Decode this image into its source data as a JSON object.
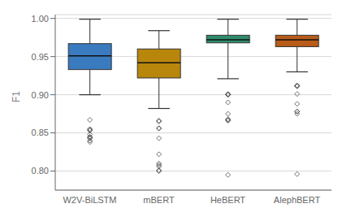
{
  "chart_data": {
    "type": "box",
    "categories": [
      "W2V-BiLSTM",
      "mBERT",
      "HeBERT",
      "AlephBERT"
    ],
    "colors": [
      "#3a7abf",
      "#b8860b",
      "#2e8b6e",
      "#b85c1a"
    ],
    "ylabel": "F1",
    "ylim": [
      0.775,
      1.005
    ],
    "yticks": [
      {
        "value": 0.8,
        "label": "0.80"
      },
      {
        "value": 0.85,
        "label": "0.85"
      },
      {
        "value": 0.9,
        "label": "0.90"
      },
      {
        "value": 0.95,
        "label": "0.95"
      },
      {
        "value": 1.0,
        "label": "1.00"
      }
    ],
    "grid": true,
    "boxes": [
      {
        "whislo": 0.9,
        "q1": 0.933,
        "med": 0.951,
        "q3": 0.967,
        "whishi": 0.999,
        "fliers": [
          0.867,
          0.855,
          0.854,
          0.853,
          0.848,
          0.845,
          0.844,
          0.843,
          0.84,
          0.838
        ]
      },
      {
        "whislo": 0.882,
        "q1": 0.922,
        "med": 0.942,
        "q3": 0.96,
        "whishi": 0.984,
        "fliers": [
          0.866,
          0.865,
          0.856,
          0.856,
          0.843,
          0.822,
          0.81,
          0.808,
          0.806,
          0.801,
          0.8
        ]
      },
      {
        "whislo": 0.921,
        "q1": 0.968,
        "med": 0.972,
        "q3": 0.978,
        "whishi": 0.999,
        "fliers": [
          0.901,
          0.9,
          0.9,
          0.89,
          0.875,
          0.868,
          0.867,
          0.866,
          0.795
        ]
      },
      {
        "whislo": 0.93,
        "q1": 0.963,
        "med": 0.972,
        "q3": 0.978,
        "whishi": 0.999,
        "fliers": [
          0.912,
          0.912,
          0.911,
          0.901,
          0.888,
          0.878,
          0.878,
          0.875,
          0.796
        ]
      }
    ]
  }
}
